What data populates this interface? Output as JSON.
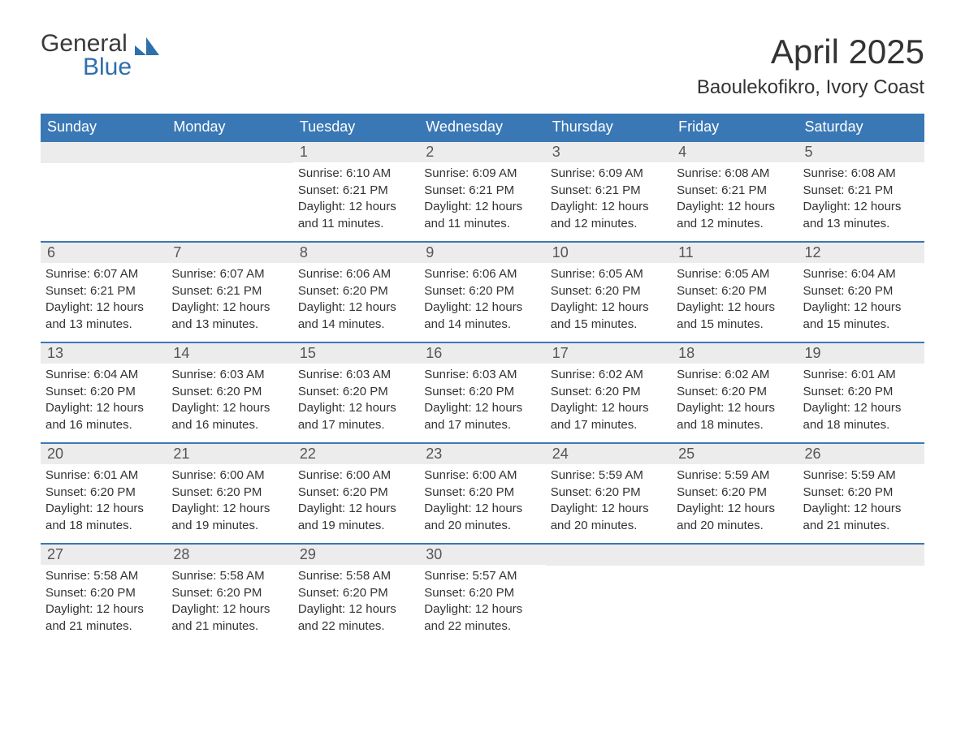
{
  "logo": {
    "line1": "General",
    "line2": "Blue"
  },
  "title": "April 2025",
  "location": "Baoulekofikro, Ivory Coast",
  "colors": {
    "header_bg": "#3a78b5",
    "header_text": "#ffffff",
    "daynum_bg": "#ececec",
    "daynum_text": "#555555",
    "body_text": "#333333",
    "logo_blue": "#2f6fad",
    "row_border": "#3a78b5",
    "page_bg": "#ffffff"
  },
  "typography": {
    "title_fontsize": 42,
    "location_fontsize": 24,
    "weekday_fontsize": 18,
    "daynum_fontsize": 18,
    "body_fontsize": 15
  },
  "weekdays": [
    "Sunday",
    "Monday",
    "Tuesday",
    "Wednesday",
    "Thursday",
    "Friday",
    "Saturday"
  ],
  "weeks": [
    [
      {
        "day": "",
        "sunrise": "",
        "sunset": "",
        "daylight1": "",
        "daylight2": ""
      },
      {
        "day": "",
        "sunrise": "",
        "sunset": "",
        "daylight1": "",
        "daylight2": ""
      },
      {
        "day": "1",
        "sunrise": "Sunrise: 6:10 AM",
        "sunset": "Sunset: 6:21 PM",
        "daylight1": "Daylight: 12 hours",
        "daylight2": "and 11 minutes."
      },
      {
        "day": "2",
        "sunrise": "Sunrise: 6:09 AM",
        "sunset": "Sunset: 6:21 PM",
        "daylight1": "Daylight: 12 hours",
        "daylight2": "and 11 minutes."
      },
      {
        "day": "3",
        "sunrise": "Sunrise: 6:09 AM",
        "sunset": "Sunset: 6:21 PM",
        "daylight1": "Daylight: 12 hours",
        "daylight2": "and 12 minutes."
      },
      {
        "day": "4",
        "sunrise": "Sunrise: 6:08 AM",
        "sunset": "Sunset: 6:21 PM",
        "daylight1": "Daylight: 12 hours",
        "daylight2": "and 12 minutes."
      },
      {
        "day": "5",
        "sunrise": "Sunrise: 6:08 AM",
        "sunset": "Sunset: 6:21 PM",
        "daylight1": "Daylight: 12 hours",
        "daylight2": "and 13 minutes."
      }
    ],
    [
      {
        "day": "6",
        "sunrise": "Sunrise: 6:07 AM",
        "sunset": "Sunset: 6:21 PM",
        "daylight1": "Daylight: 12 hours",
        "daylight2": "and 13 minutes."
      },
      {
        "day": "7",
        "sunrise": "Sunrise: 6:07 AM",
        "sunset": "Sunset: 6:21 PM",
        "daylight1": "Daylight: 12 hours",
        "daylight2": "and 13 minutes."
      },
      {
        "day": "8",
        "sunrise": "Sunrise: 6:06 AM",
        "sunset": "Sunset: 6:20 PM",
        "daylight1": "Daylight: 12 hours",
        "daylight2": "and 14 minutes."
      },
      {
        "day": "9",
        "sunrise": "Sunrise: 6:06 AM",
        "sunset": "Sunset: 6:20 PM",
        "daylight1": "Daylight: 12 hours",
        "daylight2": "and 14 minutes."
      },
      {
        "day": "10",
        "sunrise": "Sunrise: 6:05 AM",
        "sunset": "Sunset: 6:20 PM",
        "daylight1": "Daylight: 12 hours",
        "daylight2": "and 15 minutes."
      },
      {
        "day": "11",
        "sunrise": "Sunrise: 6:05 AM",
        "sunset": "Sunset: 6:20 PM",
        "daylight1": "Daylight: 12 hours",
        "daylight2": "and 15 minutes."
      },
      {
        "day": "12",
        "sunrise": "Sunrise: 6:04 AM",
        "sunset": "Sunset: 6:20 PM",
        "daylight1": "Daylight: 12 hours",
        "daylight2": "and 15 minutes."
      }
    ],
    [
      {
        "day": "13",
        "sunrise": "Sunrise: 6:04 AM",
        "sunset": "Sunset: 6:20 PM",
        "daylight1": "Daylight: 12 hours",
        "daylight2": "and 16 minutes."
      },
      {
        "day": "14",
        "sunrise": "Sunrise: 6:03 AM",
        "sunset": "Sunset: 6:20 PM",
        "daylight1": "Daylight: 12 hours",
        "daylight2": "and 16 minutes."
      },
      {
        "day": "15",
        "sunrise": "Sunrise: 6:03 AM",
        "sunset": "Sunset: 6:20 PM",
        "daylight1": "Daylight: 12 hours",
        "daylight2": "and 17 minutes."
      },
      {
        "day": "16",
        "sunrise": "Sunrise: 6:03 AM",
        "sunset": "Sunset: 6:20 PM",
        "daylight1": "Daylight: 12 hours",
        "daylight2": "and 17 minutes."
      },
      {
        "day": "17",
        "sunrise": "Sunrise: 6:02 AM",
        "sunset": "Sunset: 6:20 PM",
        "daylight1": "Daylight: 12 hours",
        "daylight2": "and 17 minutes."
      },
      {
        "day": "18",
        "sunrise": "Sunrise: 6:02 AM",
        "sunset": "Sunset: 6:20 PM",
        "daylight1": "Daylight: 12 hours",
        "daylight2": "and 18 minutes."
      },
      {
        "day": "19",
        "sunrise": "Sunrise: 6:01 AM",
        "sunset": "Sunset: 6:20 PM",
        "daylight1": "Daylight: 12 hours",
        "daylight2": "and 18 minutes."
      }
    ],
    [
      {
        "day": "20",
        "sunrise": "Sunrise: 6:01 AM",
        "sunset": "Sunset: 6:20 PM",
        "daylight1": "Daylight: 12 hours",
        "daylight2": "and 18 minutes."
      },
      {
        "day": "21",
        "sunrise": "Sunrise: 6:00 AM",
        "sunset": "Sunset: 6:20 PM",
        "daylight1": "Daylight: 12 hours",
        "daylight2": "and 19 minutes."
      },
      {
        "day": "22",
        "sunrise": "Sunrise: 6:00 AM",
        "sunset": "Sunset: 6:20 PM",
        "daylight1": "Daylight: 12 hours",
        "daylight2": "and 19 minutes."
      },
      {
        "day": "23",
        "sunrise": "Sunrise: 6:00 AM",
        "sunset": "Sunset: 6:20 PM",
        "daylight1": "Daylight: 12 hours",
        "daylight2": "and 20 minutes."
      },
      {
        "day": "24",
        "sunrise": "Sunrise: 5:59 AM",
        "sunset": "Sunset: 6:20 PM",
        "daylight1": "Daylight: 12 hours",
        "daylight2": "and 20 minutes."
      },
      {
        "day": "25",
        "sunrise": "Sunrise: 5:59 AM",
        "sunset": "Sunset: 6:20 PM",
        "daylight1": "Daylight: 12 hours",
        "daylight2": "and 20 minutes."
      },
      {
        "day": "26",
        "sunrise": "Sunrise: 5:59 AM",
        "sunset": "Sunset: 6:20 PM",
        "daylight1": "Daylight: 12 hours",
        "daylight2": "and 21 minutes."
      }
    ],
    [
      {
        "day": "27",
        "sunrise": "Sunrise: 5:58 AM",
        "sunset": "Sunset: 6:20 PM",
        "daylight1": "Daylight: 12 hours",
        "daylight2": "and 21 minutes."
      },
      {
        "day": "28",
        "sunrise": "Sunrise: 5:58 AM",
        "sunset": "Sunset: 6:20 PM",
        "daylight1": "Daylight: 12 hours",
        "daylight2": "and 21 minutes."
      },
      {
        "day": "29",
        "sunrise": "Sunrise: 5:58 AM",
        "sunset": "Sunset: 6:20 PM",
        "daylight1": "Daylight: 12 hours",
        "daylight2": "and 22 minutes."
      },
      {
        "day": "30",
        "sunrise": "Sunrise: 5:57 AM",
        "sunset": "Sunset: 6:20 PM",
        "daylight1": "Daylight: 12 hours",
        "daylight2": "and 22 minutes."
      },
      {
        "day": "",
        "sunrise": "",
        "sunset": "",
        "daylight1": "",
        "daylight2": ""
      },
      {
        "day": "",
        "sunrise": "",
        "sunset": "",
        "daylight1": "",
        "daylight2": ""
      },
      {
        "day": "",
        "sunrise": "",
        "sunset": "",
        "daylight1": "",
        "daylight2": ""
      }
    ]
  ]
}
